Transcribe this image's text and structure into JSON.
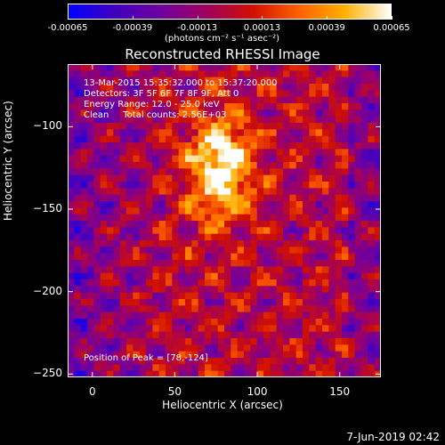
{
  "colorbar": {
    "ticks": [
      "-0.00065",
      "-0.00039",
      "-0.00013",
      "0.00013",
      "0.00039",
      "0.00065"
    ],
    "units": "(photons cm⁻² s⁻¹ asec⁻²)",
    "colors": [
      "#0000ff",
      "#4000c0",
      "#7000a0",
      "#a00060",
      "#d01000",
      "#ff6000",
      "#ffb000",
      "#ffffff"
    ]
  },
  "chart_data": {
    "type": "heatmap",
    "title": "Reconstructed RHESSI Image",
    "xlabel": "Heliocentric X (arcsec)",
    "ylabel": "Heliocentric Y (arcsec)",
    "xlim": [
      -15,
      175
    ],
    "ylim": [
      -252,
      -62
    ],
    "x_ticks": [
      "0",
      "50",
      "100",
      "150"
    ],
    "y_ticks": [
      "-100",
      "-150",
      "-200",
      "-250"
    ],
    "value_range": [
      -0.00065,
      0.00065
    ],
    "peak": [
      78,
      -124
    ],
    "annotations": [
      "13-Mar-2015 15:35:32.000 to 15:37:20.000",
      "Detectors: 3F 5F 6F 7F 8F 9F, Att 0",
      "Energy Range: 12.0 - 25.0 keV",
      "Clean     Total counts: 2.56E+03"
    ],
    "peak_label": "Position of Peak = [78,-124]"
  },
  "timestamp": "7-Jun-2019 02:42"
}
